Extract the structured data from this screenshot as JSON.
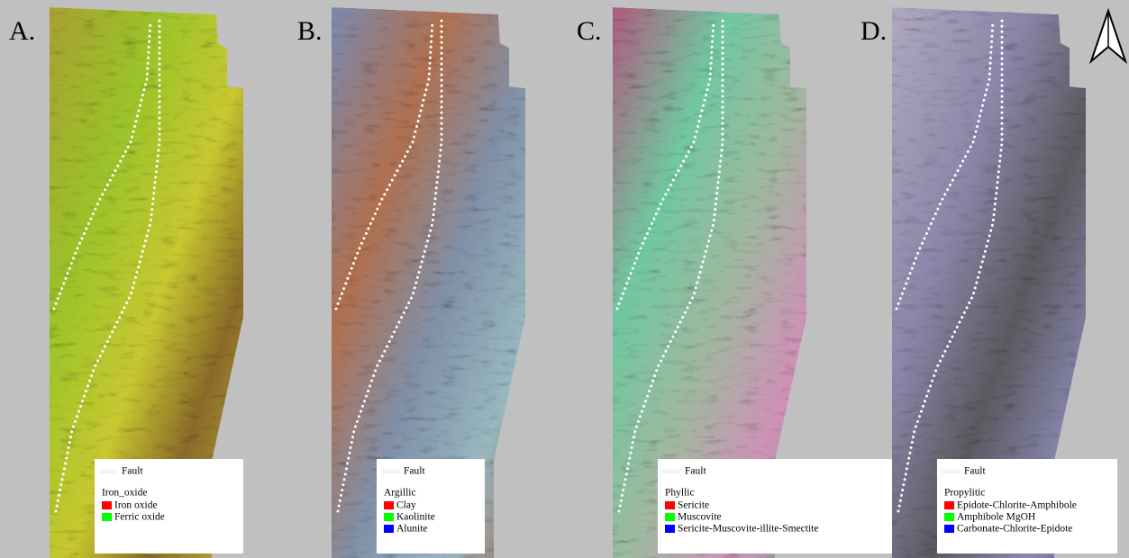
{
  "panels": [
    {
      "label": "A.",
      "fault_label": "Fault",
      "legend_title": "Iron_oxide",
      "items": [
        {
          "name": "Iron oxide",
          "color": "#ff0000"
        },
        {
          "name": "Ferric oxide",
          "color": "#00ff00"
        }
      ]
    },
    {
      "label": "B.",
      "fault_label": "Fault",
      "legend_title": "Argillic",
      "items": [
        {
          "name": "Clay",
          "color": "#ff0000"
        },
        {
          "name": "Kaolinite",
          "color": "#00ff00"
        },
        {
          "name": "Alunite",
          "color": "#0000ff"
        }
      ]
    },
    {
      "label": "C.",
      "fault_label": "Fault",
      "legend_title": "Phyllic",
      "items": [
        {
          "name": "Sericite",
          "color": "#ff0000"
        },
        {
          "name": "Muscovite",
          "color": "#00ff00"
        },
        {
          "name": "Sericite-Muscovite-illite-Smectite",
          "color": "#0000ff"
        }
      ]
    },
    {
      "label": "D.",
      "fault_label": "Fault",
      "legend_title": "Propylitic",
      "items": [
        {
          "name": "Epidote-Chlorite-Amphibole",
          "color": "#ff0000"
        },
        {
          "name": "Amphibole MgOH",
          "color": "#00ff00"
        },
        {
          "name": "Carbonate-Chlorite-Epidote",
          "color": "#0000ff"
        }
      ]
    }
  ]
}
